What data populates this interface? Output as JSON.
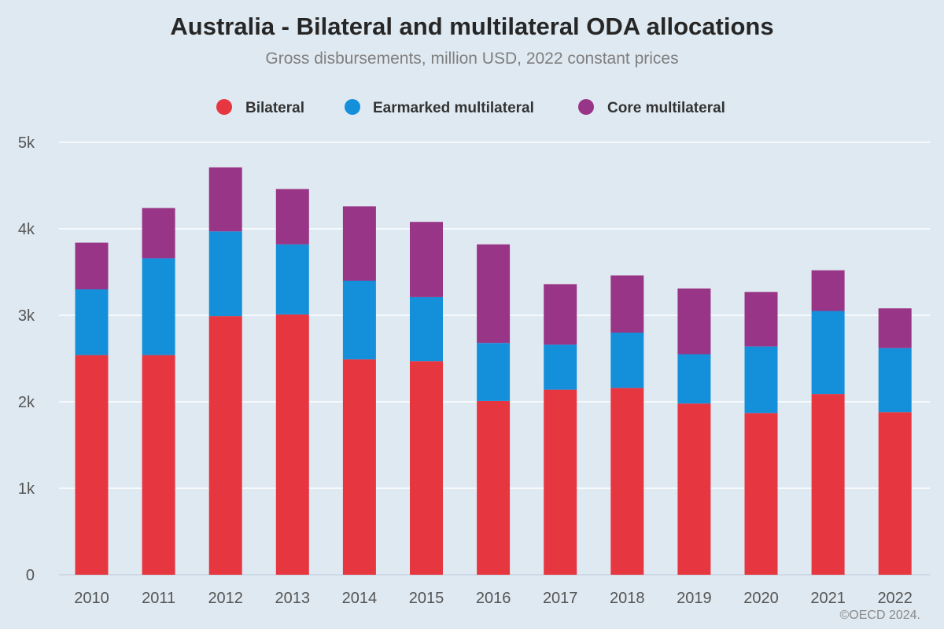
{
  "chart_data": {
    "type": "bar",
    "stacked": true,
    "title": "Australia - Bilateral and multilateral ODA allocations",
    "subtitle": "Gross disbursements, million USD, 2022 constant prices",
    "categories": [
      "2010",
      "2011",
      "2012",
      "2013",
      "2014",
      "2015",
      "2016",
      "2017",
      "2018",
      "2019",
      "2020",
      "2021",
      "2022"
    ],
    "series": [
      {
        "name": "Bilateral",
        "color": "#e63741",
        "values": [
          2540,
          2540,
          2990,
          3010,
          2490,
          2470,
          2010,
          2140,
          2160,
          1980,
          1870,
          2090,
          1880
        ]
      },
      {
        "name": "Earmarked multilateral",
        "color": "#1490db",
        "values": [
          760,
          1120,
          980,
          810,
          910,
          740,
          670,
          520,
          640,
          570,
          770,
          960,
          740
        ]
      },
      {
        "name": "Core multilateral",
        "color": "#993586",
        "values": [
          540,
          580,
          740,
          640,
          860,
          870,
          1140,
          700,
          660,
          760,
          630,
          470,
          460
        ]
      }
    ],
    "ylim": [
      0,
      5000
    ],
    "yticks": [
      0,
      1000,
      2000,
      3000,
      4000,
      5000
    ],
    "ytick_labels": [
      "0",
      "1k",
      "2k",
      "3k",
      "4k",
      "5k"
    ],
    "xlabel": "",
    "ylabel": "",
    "grid": true,
    "legend_position": "top-center",
    "credit": "©OECD 2024."
  }
}
